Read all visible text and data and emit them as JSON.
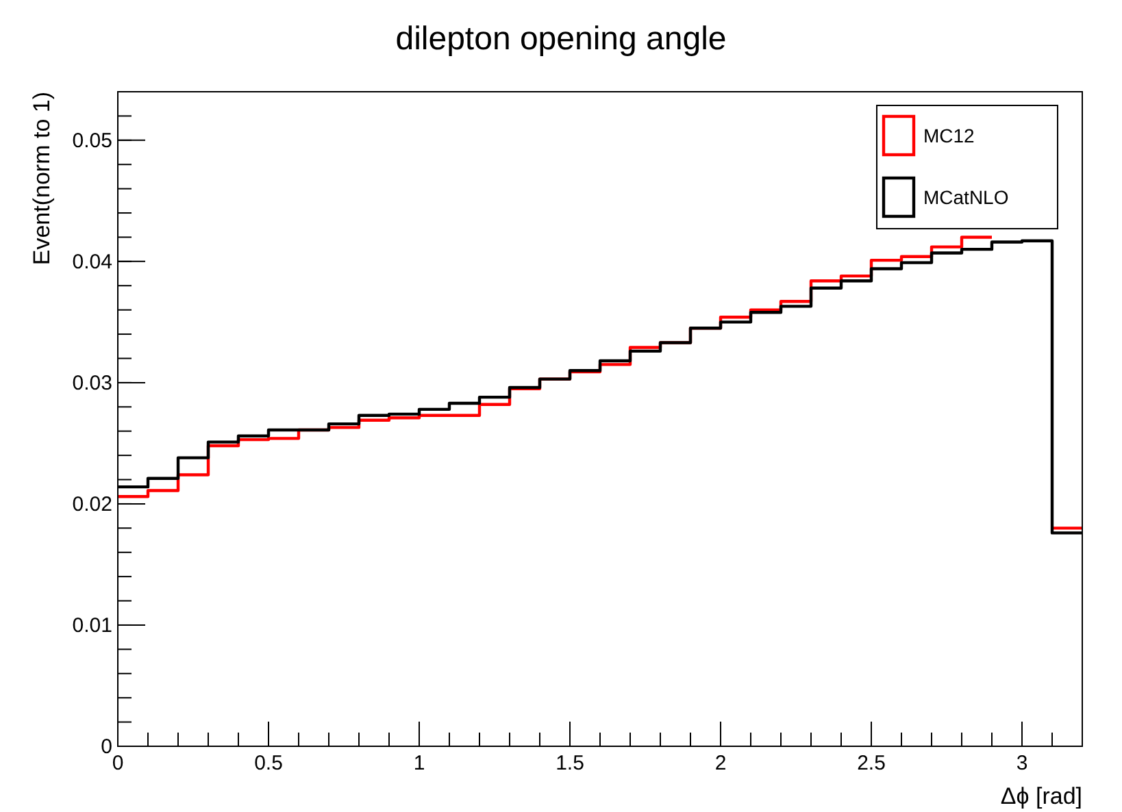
{
  "chart_data": {
    "type": "step",
    "title": "dilepton opening angle",
    "xlabel": "Δϕ [rad]",
    "ylabel": "Event(norm to 1)",
    "x": [
      0,
      0.1,
      0.2,
      0.3,
      0.4,
      0.5,
      0.6,
      0.7,
      0.8,
      0.9,
      1,
      1.1,
      1.2,
      1.3,
      1.4,
      1.5,
      1.6,
      1.7,
      1.8,
      1.9,
      2,
      2.1,
      2.2,
      2.3,
      2.4,
      2.5,
      2.6,
      2.7,
      2.8,
      2.9,
      3,
      3.1,
      3.2
    ],
    "series": [
      {
        "name": "MC12",
        "color": "#ff0000",
        "values": [
          0.0206,
          0.0211,
          0.0224,
          0.0248,
          0.0253,
          0.0254,
          0.0261,
          0.0263,
          0.0269,
          0.0271,
          0.0273,
          0.0273,
          0.0282,
          0.0295,
          0.0303,
          0.0309,
          0.0315,
          0.0329,
          0.0333,
          0.0345,
          0.0354,
          0.036,
          0.0367,
          0.0384,
          0.0388,
          0.0401,
          0.0404,
          0.0412,
          0.042,
          null,
          null,
          0.018,
          0.018
        ]
      },
      {
        "name": "MCatNLO",
        "color": "#000000",
        "values": [
          0.0214,
          0.0221,
          0.0238,
          0.0251,
          0.0256,
          0.0261,
          0.0261,
          0.0266,
          0.0273,
          0.0274,
          0.0278,
          0.0283,
          0.0288,
          0.0296,
          0.0303,
          0.031,
          0.0318,
          0.0326,
          0.0333,
          0.0345,
          0.035,
          0.0358,
          0.0363,
          0.0378,
          0.0384,
          0.0394,
          0.0399,
          0.0407,
          0.041,
          0.0416,
          0.0417,
          0.0176,
          0.0176
        ]
      }
    ],
    "xlim": [
      0,
      3.2
    ],
    "ylim": [
      0,
      0.054
    ],
    "xticks": [
      0,
      0.5,
      1,
      1.5,
      2,
      2.5,
      3
    ],
    "yticks": [
      0,
      0.01,
      0.02,
      0.03,
      0.04,
      0.05
    ],
    "grid": false,
    "legend": "top right"
  }
}
